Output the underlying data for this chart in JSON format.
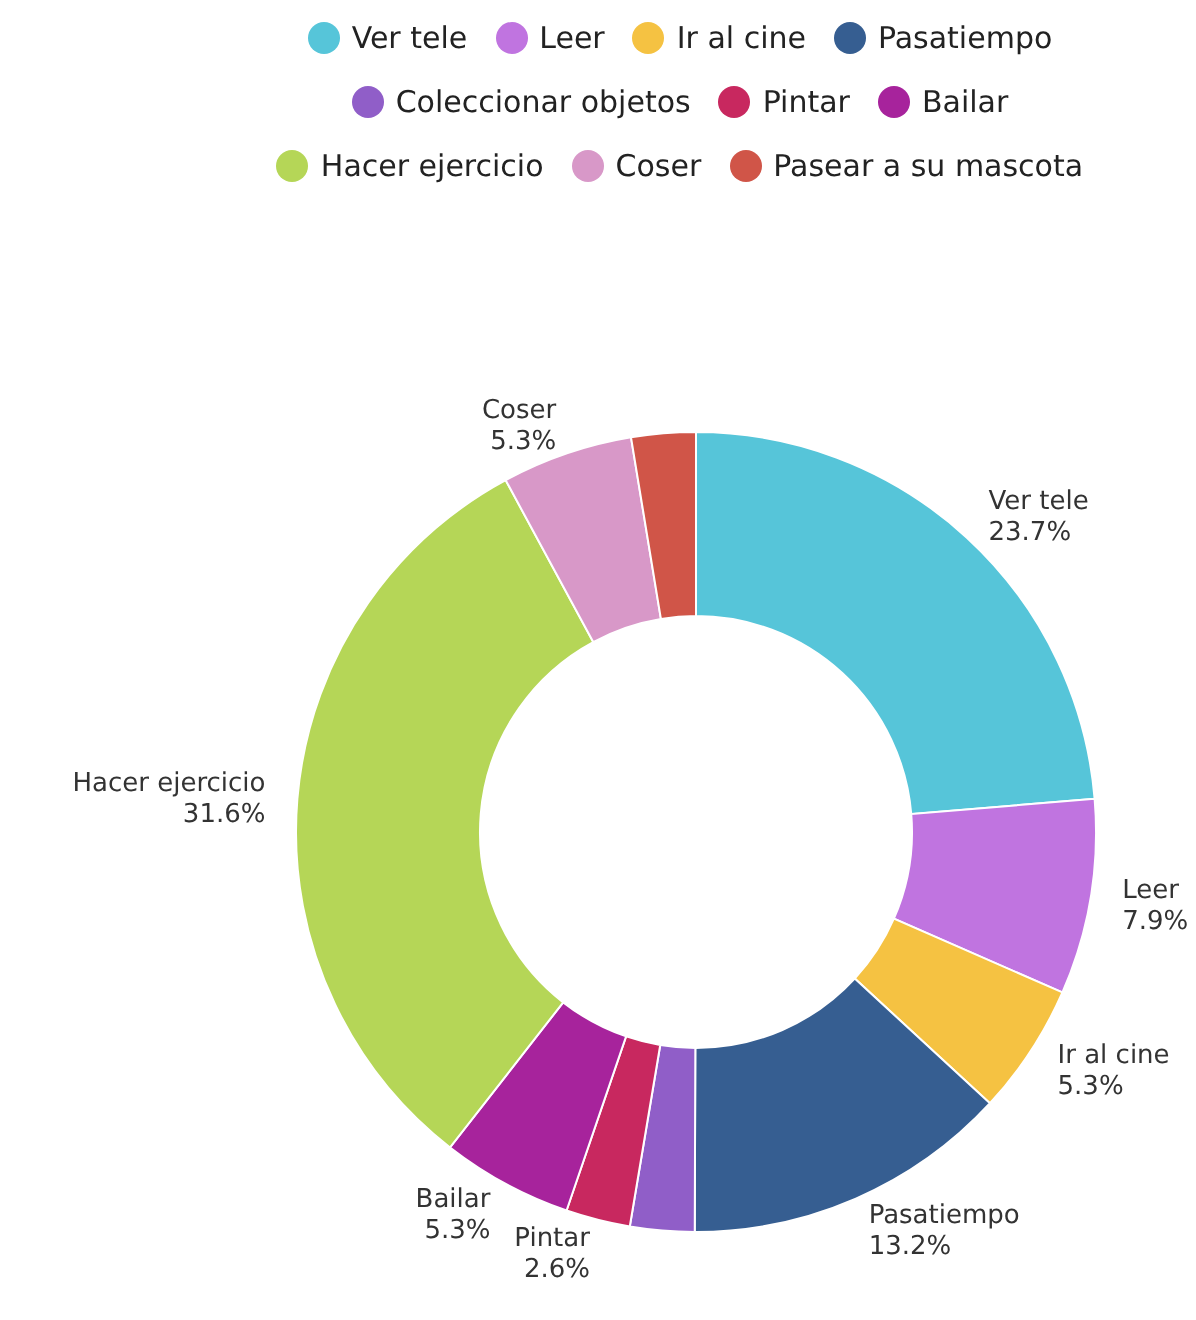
{
  "chart_data": {
    "type": "donut",
    "categories": [
      "Ver tele",
      "Leer",
      "Ir al cine",
      "Pasatiempo",
      "Coleccionar objetos",
      "Pintar",
      "Bailar",
      "Hacer ejercicio",
      "Coser",
      "Pasear a su mascota"
    ],
    "values": [
      23.7,
      7.9,
      5.3,
      13.2,
      2.6,
      2.6,
      5.3,
      31.6,
      5.3,
      2.6
    ],
    "value_labels": [
      "23.7%",
      "7.9%",
      "5.3%",
      "13.2%",
      null,
      "2.6%",
      "5.3%",
      "31.6%",
      "5.3%",
      null
    ],
    "colors": [
      "#56c5d9",
      "#c074e0",
      "#f5c242",
      "#365e91",
      "#905ec8",
      "#c8285f",
      "#a7239c",
      "#b5d657",
      "#d898c8",
      "#d05548"
    ],
    "legend": "top"
  }
}
